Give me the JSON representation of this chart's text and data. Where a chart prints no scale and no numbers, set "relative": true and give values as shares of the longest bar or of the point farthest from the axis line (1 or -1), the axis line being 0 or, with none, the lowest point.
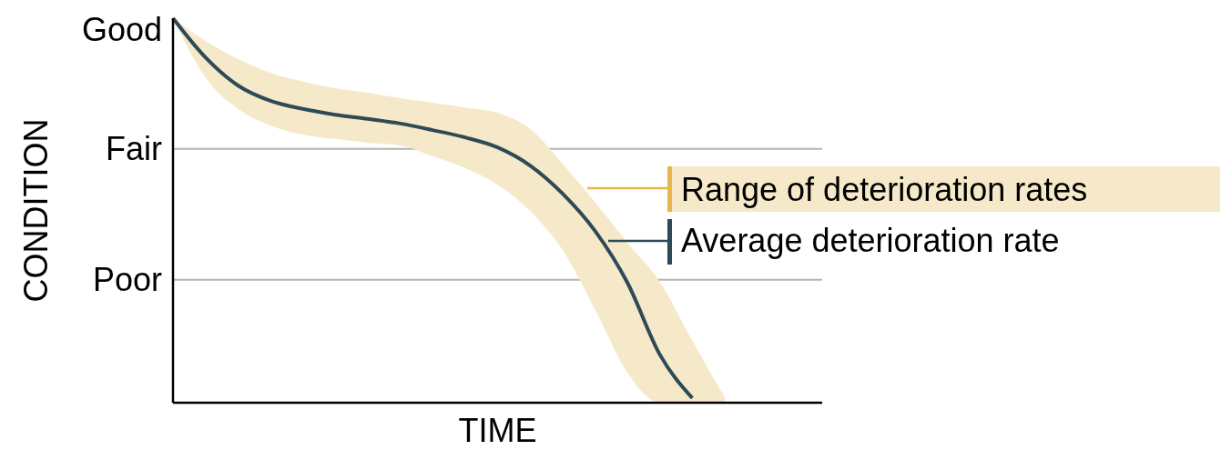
{
  "chart_data": {
    "type": "line",
    "xlabel": "TIME",
    "ylabel": "CONDITION",
    "categories": [
      null,
      null,
      null,
      null,
      null,
      null,
      null,
      null,
      null,
      null,
      null,
      null,
      null,
      null,
      null,
      null,
      null,
      null,
      null,
      null,
      null
    ],
    "relative": true,
    "annotations": [
      "Good",
      "Range of deterioration rates"
    ],
    "ref_lines": [
      {
        "axis": "y",
        "value": 0.66,
        "label": "Fair",
        "color": "#b3b3b3"
      },
      {
        "axis": "y",
        "value": 0.32,
        "label": "Poor",
        "color": "#b3b3b3"
      }
    ],
    "legend": "right",
    "marker": "none",
    "line_style": "solid",
    "series": [
      {
        "name": "Average deterioration rate",
        "color": "#2e4a56",
        "values": [
          1.0,
          0.898,
          0.825,
          0.785,
          0.764,
          0.749,
          0.738,
          0.726,
          0.709,
          0.69,
          0.664,
          0.617,
          0.544,
          0.447,
          0.312,
          0.125,
          0.012,
          null,
          null,
          null,
          null
        ],
        "upper": [
          1.0,
          0.941,
          0.894,
          0.858,
          0.835,
          0.818,
          0.806,
          0.792,
          0.78,
          0.768,
          0.754,
          0.712,
          0.622,
          0.522,
          0.416,
          0.314,
          0.161,
          0.014,
          null,
          null,
          null
        ],
        "lower": [
          1.0,
          0.846,
          0.764,
          0.721,
          0.697,
          0.686,
          0.676,
          0.669,
          0.641,
          0.61,
          0.567,
          0.499,
          0.397,
          0.243,
          0.078,
          0,
          0,
          0,
          null,
          null,
          null
        ]
      }
    ]
  }
}
